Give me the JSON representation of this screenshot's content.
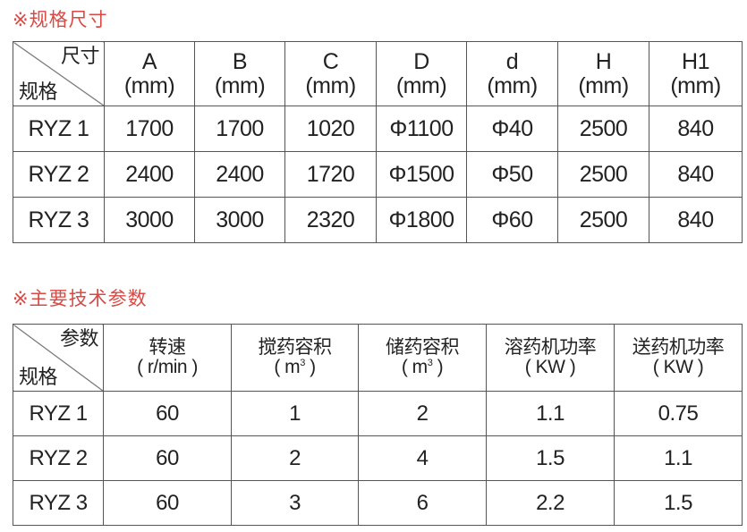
{
  "section1": {
    "title": "※规格尺寸",
    "corner_top": "尺寸",
    "corner_bottom": "规格",
    "headers": [
      {
        "name": "A",
        "unit": "(mm)"
      },
      {
        "name": "B",
        "unit": "(mm)"
      },
      {
        "name": "C",
        "unit": "(mm)"
      },
      {
        "name": "D",
        "unit": "(mm)"
      },
      {
        "name": "d",
        "unit": "(mm)"
      },
      {
        "name": "H",
        "unit": "(mm)"
      },
      {
        "name": "H1",
        "unit": "(mm)"
      }
    ],
    "rows": [
      [
        "RYZ 1",
        "1700",
        "1700",
        "1020",
        "Φ1100",
        "Φ40",
        "2500",
        "840"
      ],
      [
        "RYZ 2",
        "2400",
        "2400",
        "1720",
        "Φ1500",
        "Φ50",
        "2500",
        "840"
      ],
      [
        "RYZ 3",
        "3000",
        "3000",
        "2320",
        "Φ1800",
        "Φ60",
        "2500",
        "840"
      ]
    ]
  },
  "section2": {
    "title": "※主要技术参数",
    "corner_top": "参数",
    "corner_bottom": "规格",
    "headers": [
      {
        "name": "转速",
        "unit": "( r/min )"
      },
      {
        "name": "搅药容积",
        "unit": "( m",
        "sup": "3",
        "unit_end": " )"
      },
      {
        "name": "储药容积",
        "unit": "( m",
        "sup": "3",
        "unit_end": " )"
      },
      {
        "name": "溶药机功率",
        "unit": "( KW )"
      },
      {
        "name": "送药机功率",
        "unit": "( KW )"
      }
    ],
    "rows": [
      [
        "RYZ 1",
        "60",
        "1",
        "2",
        "1.1",
        "0.75"
      ],
      [
        "RYZ 2",
        "60",
        "2",
        "4",
        "1.5",
        "1.1"
      ],
      [
        "RYZ 3",
        "60",
        "3",
        "6",
        "2.2",
        "1.5"
      ]
    ]
  },
  "colors": {
    "title": "#d94a44",
    "border": "#555555",
    "text": "#222222"
  }
}
